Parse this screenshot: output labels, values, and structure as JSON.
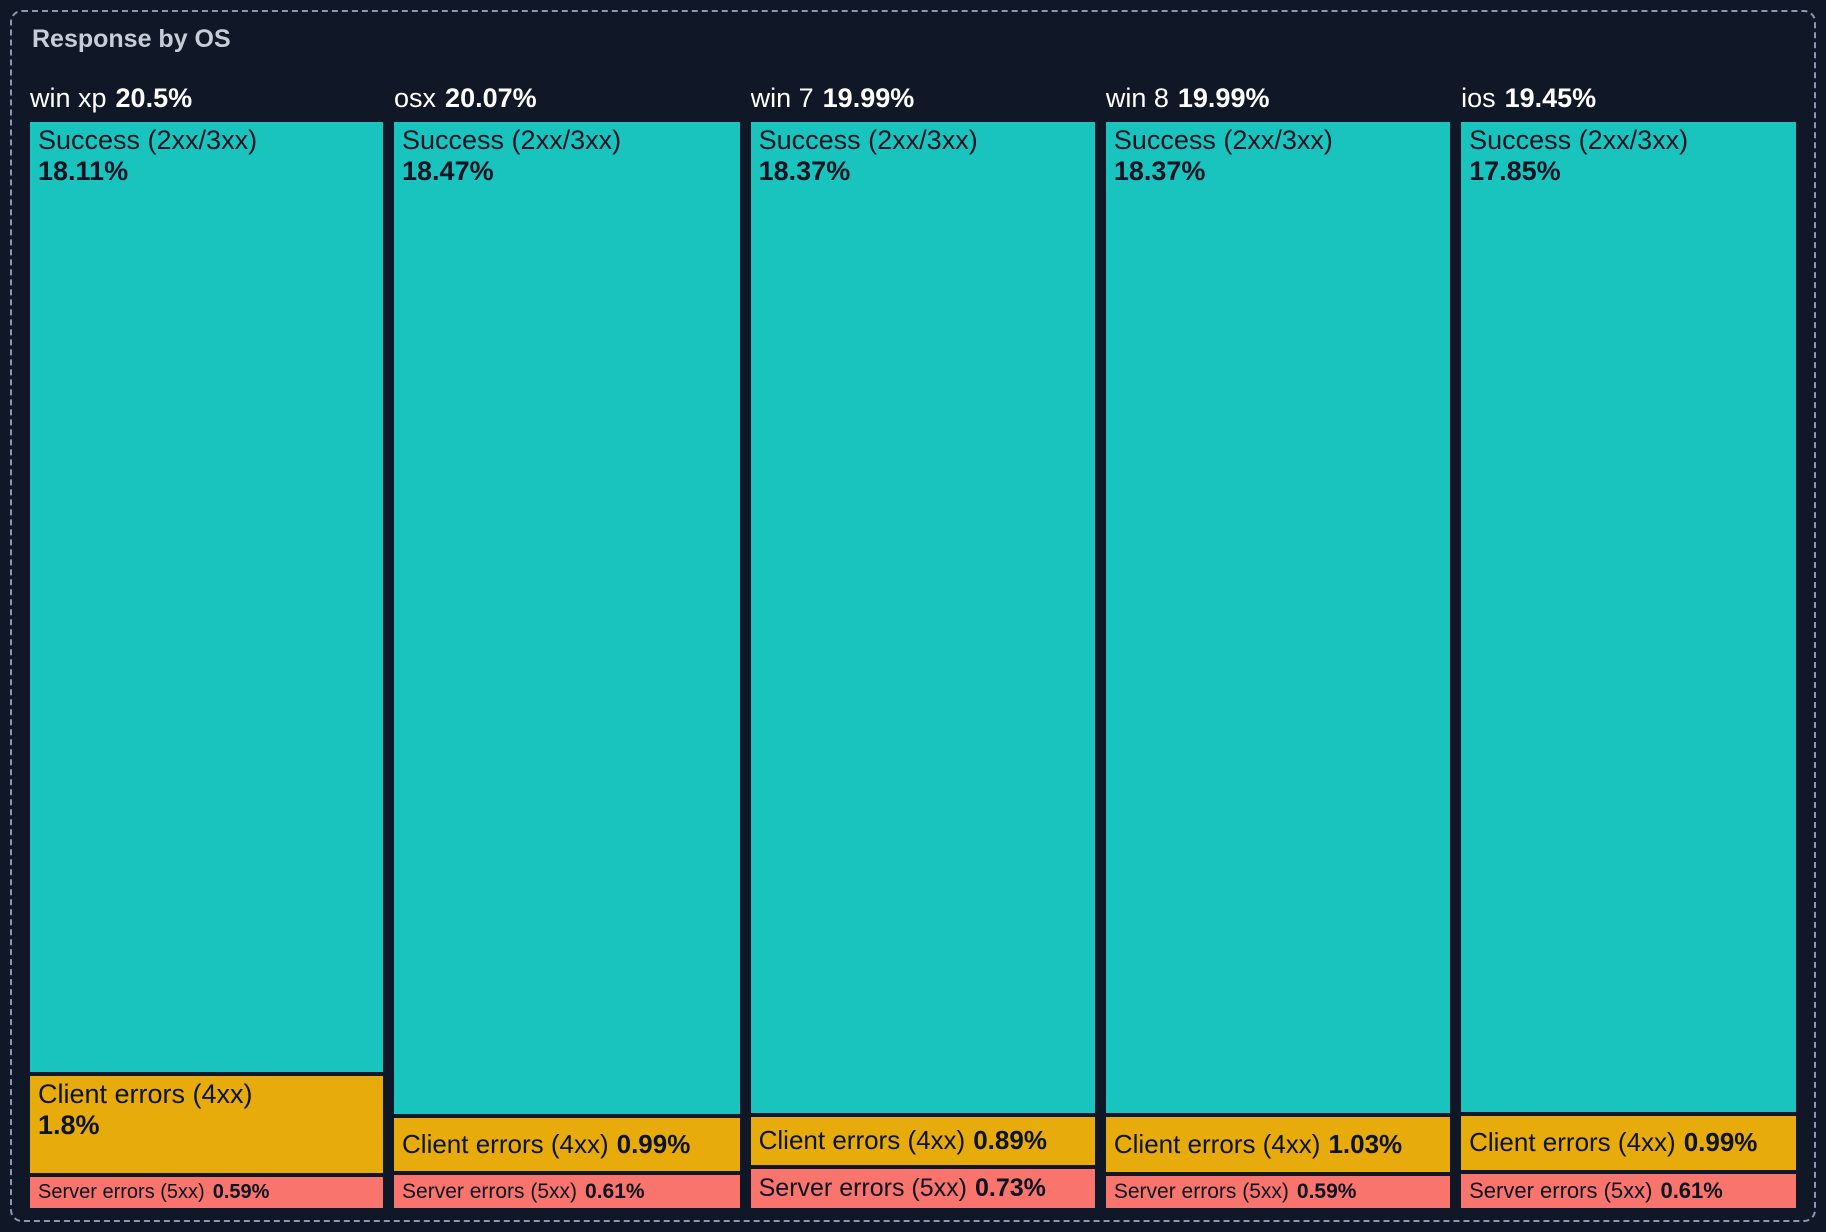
{
  "panel": {
    "title": "Response by OS"
  },
  "colors": {
    "background": "#101726",
    "frame_border": "#8b98b4",
    "title_text": "#c6cdd9",
    "header_text": "#ffffff",
    "segment_text": "#0c1322"
  },
  "chart_data": {
    "type": "treemap",
    "title": "Response by OS",
    "units": "percent",
    "legend": "none",
    "layout": "columns-proportional-to-share, segments-stacked-vertically",
    "segment_colors": {
      "success": "#1ac4be",
      "client": "#e7ab0c",
      "server": "#f8746c"
    },
    "groups": [
      {
        "label": "win xp",
        "value": 20.5,
        "display": "20.5%",
        "segments": [
          {
            "type": "success",
            "label": "Success (2xx/3xx)",
            "value": 18.11,
            "display": "18.11%"
          },
          {
            "type": "client",
            "label": "Client errors (4xx)",
            "value": 1.8,
            "display": "1.8%"
          },
          {
            "type": "server",
            "label": "Server errors (5xx)",
            "value": 0.59,
            "display": "0.59%"
          }
        ]
      },
      {
        "label": "osx",
        "value": 20.07,
        "display": "20.07%",
        "segments": [
          {
            "type": "success",
            "label": "Success (2xx/3xx)",
            "value": 18.47,
            "display": "18.47%"
          },
          {
            "type": "client",
            "label": "Client errors (4xx)",
            "value": 0.99,
            "display": "0.99%"
          },
          {
            "type": "server",
            "label": "Server errors (5xx)",
            "value": 0.61,
            "display": "0.61%"
          }
        ]
      },
      {
        "label": "win 7",
        "value": 19.99,
        "display": "19.99%",
        "segments": [
          {
            "type": "success",
            "label": "Success (2xx/3xx)",
            "value": 18.37,
            "display": "18.37%"
          },
          {
            "type": "client",
            "label": "Client errors (4xx)",
            "value": 0.89,
            "display": "0.89%"
          },
          {
            "type": "server",
            "label": "Server errors (5xx)",
            "value": 0.73,
            "display": "0.73%"
          }
        ]
      },
      {
        "label": "win 8",
        "value": 19.99,
        "display": "19.99%",
        "segments": [
          {
            "type": "success",
            "label": "Success (2xx/3xx)",
            "value": 18.37,
            "display": "18.37%"
          },
          {
            "type": "client",
            "label": "Client errors (4xx)",
            "value": 1.03,
            "display": "1.03%"
          },
          {
            "type": "server",
            "label": "Server errors (5xx)",
            "value": 0.59,
            "display": "0.59%"
          }
        ]
      },
      {
        "label": "ios",
        "value": 19.45,
        "display": "19.45%",
        "segments": [
          {
            "type": "success",
            "label": "Success (2xx/3xx)",
            "value": 17.85,
            "display": "17.85%"
          },
          {
            "type": "client",
            "label": "Client errors (4xx)",
            "value": 0.99,
            "display": "0.99%"
          },
          {
            "type": "server",
            "label": "Server errors (5xx)",
            "value": 0.61,
            "display": "0.61%"
          }
        ]
      }
    ]
  }
}
